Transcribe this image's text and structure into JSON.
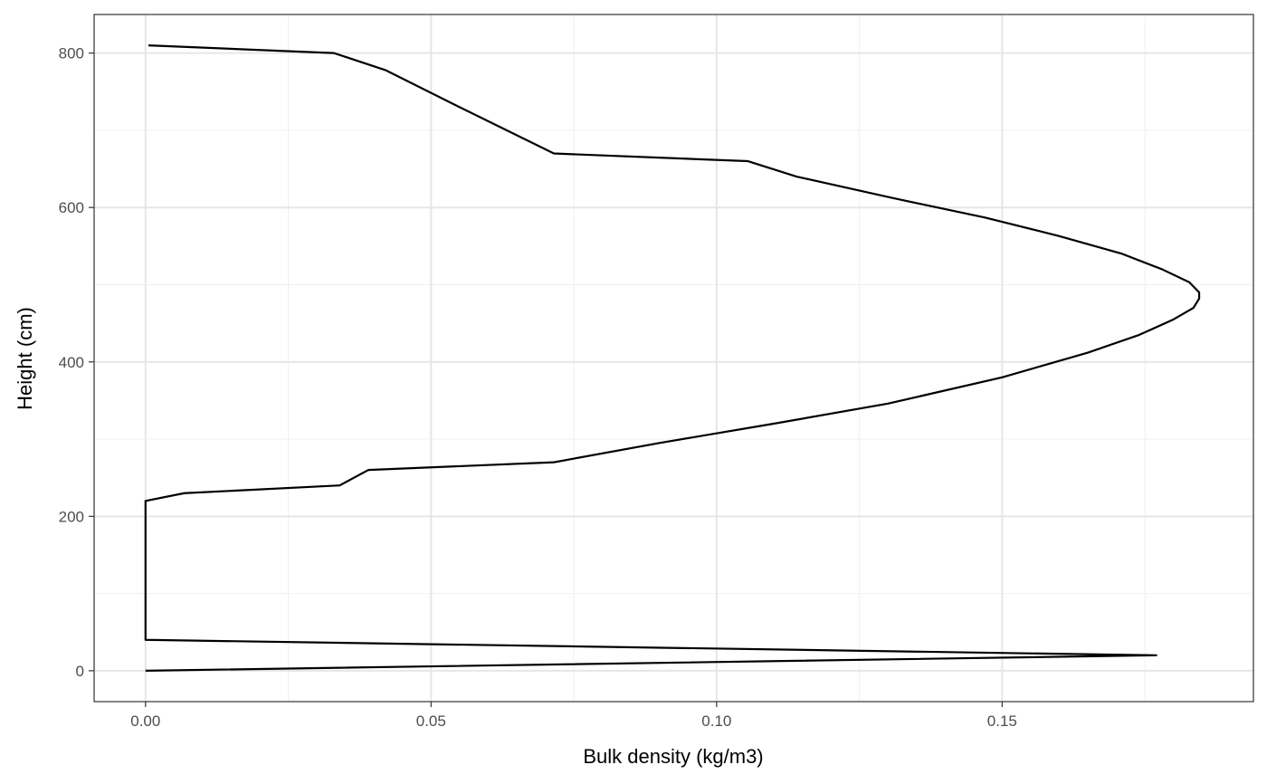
{
  "chart_data": {
    "type": "line",
    "title": "",
    "xlabel": "Bulk density (kg/m3)",
    "ylabel": "Height (cm)",
    "xlim": [
      -0.009,
      0.194
    ],
    "ylim": [
      -40,
      850
    ],
    "x_ticks": [
      {
        "value": 0.0,
        "label": "0.00"
      },
      {
        "value": 0.05,
        "label": "0.05"
      },
      {
        "value": 0.1,
        "label": "0.10"
      },
      {
        "value": 0.15,
        "label": "0.15"
      }
    ],
    "y_ticks": [
      {
        "value": 0,
        "label": "0"
      },
      {
        "value": 200,
        "label": "200"
      },
      {
        "value": 400,
        "label": "400"
      },
      {
        "value": 600,
        "label": "600"
      },
      {
        "value": 800,
        "label": "800"
      }
    ],
    "x_minor": [
      0.025,
      0.075,
      0.125,
      0.175
    ],
    "y_minor": [
      100,
      300,
      500,
      700
    ],
    "grid": true,
    "line_color": "#000000",
    "series": [
      {
        "points": [
          {
            "x": 0.0,
            "y": 0
          },
          {
            "x": 0.177,
            "y": 20
          },
          {
            "x": 0.0,
            "y": 40
          },
          {
            "x": 0.0,
            "y": 220
          },
          {
            "x": 0.0068,
            "y": 230
          },
          {
            "x": 0.034,
            "y": 240
          },
          {
            "x": 0.039,
            "y": 260
          },
          {
            "x": 0.0715,
            "y": 270
          },
          {
            "x": 0.09,
            "y": 295
          },
          {
            "x": 0.11,
            "y": 320
          },
          {
            "x": 0.13,
            "y": 346
          },
          {
            "x": 0.15,
            "y": 380
          },
          {
            "x": 0.165,
            "y": 412
          },
          {
            "x": 0.174,
            "y": 435
          },
          {
            "x": 0.18,
            "y": 455
          },
          {
            "x": 0.1835,
            "y": 470
          },
          {
            "x": 0.1845,
            "y": 482
          },
          {
            "x": 0.1845,
            "y": 490
          },
          {
            "x": 0.1828,
            "y": 503
          },
          {
            "x": 0.178,
            "y": 520
          },
          {
            "x": 0.171,
            "y": 540
          },
          {
            "x": 0.16,
            "y": 563
          },
          {
            "x": 0.147,
            "y": 587
          },
          {
            "x": 0.131,
            "y": 612
          },
          {
            "x": 0.114,
            "y": 640
          },
          {
            "x": 0.1055,
            "y": 660
          },
          {
            "x": 0.0715,
            "y": 670
          },
          {
            "x": 0.055,
            "y": 730
          },
          {
            "x": 0.042,
            "y": 778
          },
          {
            "x": 0.033,
            "y": 800
          },
          {
            "x": 0.0005,
            "y": 810
          }
        ]
      }
    ]
  }
}
